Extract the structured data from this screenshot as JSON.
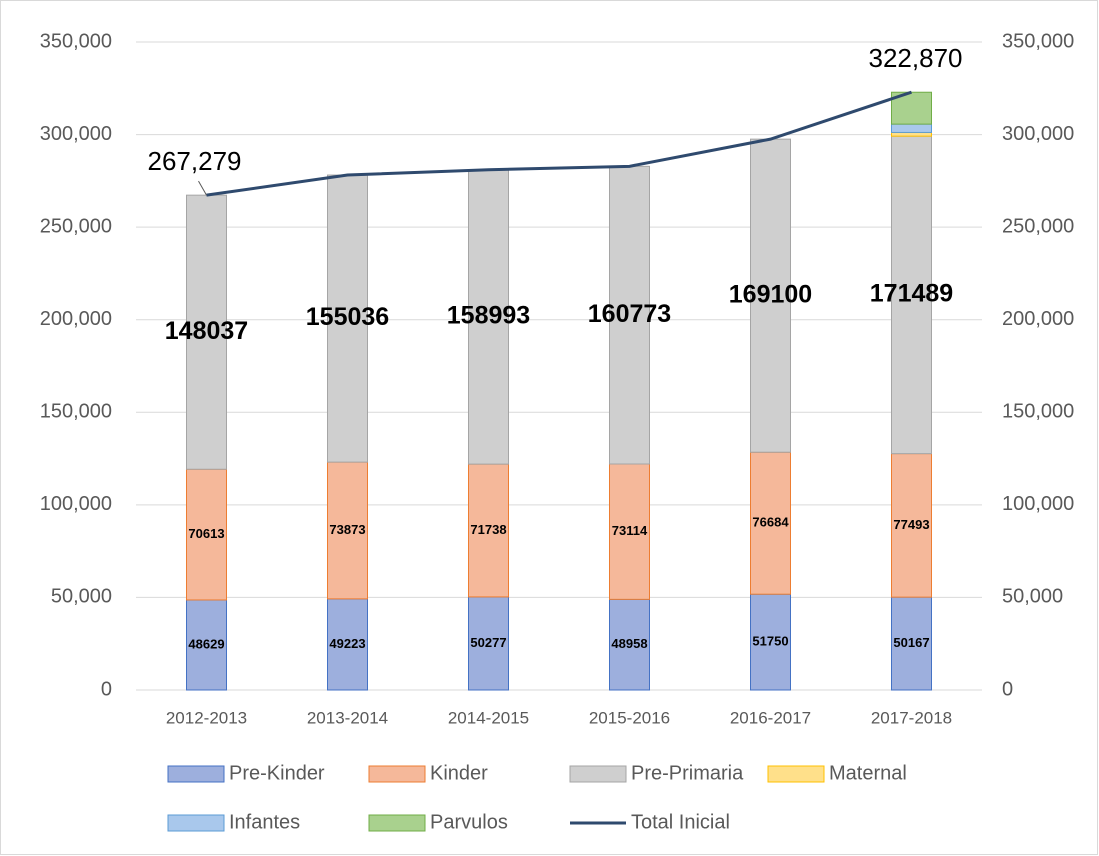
{
  "chart_data": {
    "type": "bar",
    "stacked": true,
    "categories": [
      "2012-2013",
      "2013-2014",
      "2014-2015",
      "2015-2016",
      "2016-2017",
      "2017-2018"
    ],
    "series": [
      {
        "name": "Pre-Kinder",
        "color": "#9dafdd",
        "edge": "#4472c4",
        "values": [
          48629,
          49223,
          50277,
          48958,
          51750,
          50167
        ],
        "labels": true
      },
      {
        "name": "Kinder",
        "color": "#f5b89a",
        "edge": "#ed7d31",
        "values": [
          70613,
          73873,
          71738,
          73114,
          76684,
          77493
        ],
        "labels": true
      },
      {
        "name": "Pre-Primaria",
        "color": "#cfcfcf",
        "edge": "#a5a5a5",
        "values": [
          148037,
          155036,
          158993,
          160773,
          169100,
          171489
        ],
        "labels": true
      },
      {
        "name": "Maternal",
        "color": "#ffe08a",
        "edge": "#ffc000",
        "values": [
          0,
          0,
          0,
          0,
          0,
          2000
        ]
      },
      {
        "name": "Infantes",
        "color": "#a9c8ec",
        "edge": "#5b9bd5",
        "values": [
          0,
          0,
          0,
          0,
          0,
          4500
        ]
      },
      {
        "name": "Parvulos",
        "color": "#a9d18e",
        "edge": "#70ad47",
        "values": [
          0,
          0,
          0,
          0,
          0,
          17221
        ]
      },
      {
        "name": "Total Inicial",
        "type": "line",
        "axis": "y2",
        "color": "#2f4a6e",
        "values": [
          267279,
          278132,
          281008,
          282845,
          297534,
          322870
        ],
        "value_labels": [
          "267,279",
          null,
          null,
          null,
          null,
          "322,870"
        ]
      }
    ],
    "ylim": [
      0,
      350000
    ],
    "yticks": [
      0,
      {
        "value": 50000,
        "label": "50,000"
      },
      {
        "value": 100000,
        "label": "100,000"
      },
      {
        "value": 150000,
        "label": "150,000"
      },
      {
        "value": 200000,
        "label": "200,000"
      },
      {
        "value": 250000,
        "label": "250,000"
      },
      {
        "value": 300000,
        "label": "300,000"
      },
      {
        "value": 350000,
        "label": "350,000"
      }
    ],
    "y2lim": [
      0,
      350000
    ],
    "y2ticks": [
      0,
      {
        "value": 50000,
        "label": "50,000"
      },
      {
        "value": 100000,
        "label": "100,000"
      },
      {
        "value": 150000,
        "label": "150,000"
      },
      {
        "value": 200000,
        "label": "200,000"
      },
      {
        "value": 250000,
        "label": "250,000"
      },
      {
        "value": 300000,
        "label": "300,000"
      },
      {
        "value": 350000,
        "label": "350,000"
      }
    ],
    "grid": true,
    "legend": "bottom"
  }
}
